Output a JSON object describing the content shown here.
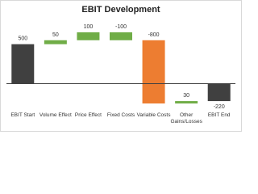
{
  "chart_data": {
    "type": "waterfall",
    "title": "EBIT Development",
    "categories": [
      "EBIT Start",
      "Volume Effect",
      "Price Effect",
      "Fixed Costs",
      "Variable Costs",
      "Other Gains/Losses",
      "EBIT End"
    ],
    "values": [
      500,
      50,
      100,
      -100,
      -800,
      30,
      -220
    ],
    "measure": [
      "absolute",
      "relative",
      "relative",
      "relative",
      "relative",
      "relative",
      "absolute"
    ],
    "colors": [
      "#404040",
      "#70ad47",
      "#70ad47",
      "#70ad47",
      "#ed7d31",
      "#70ad47",
      "#404040"
    ]
  }
}
